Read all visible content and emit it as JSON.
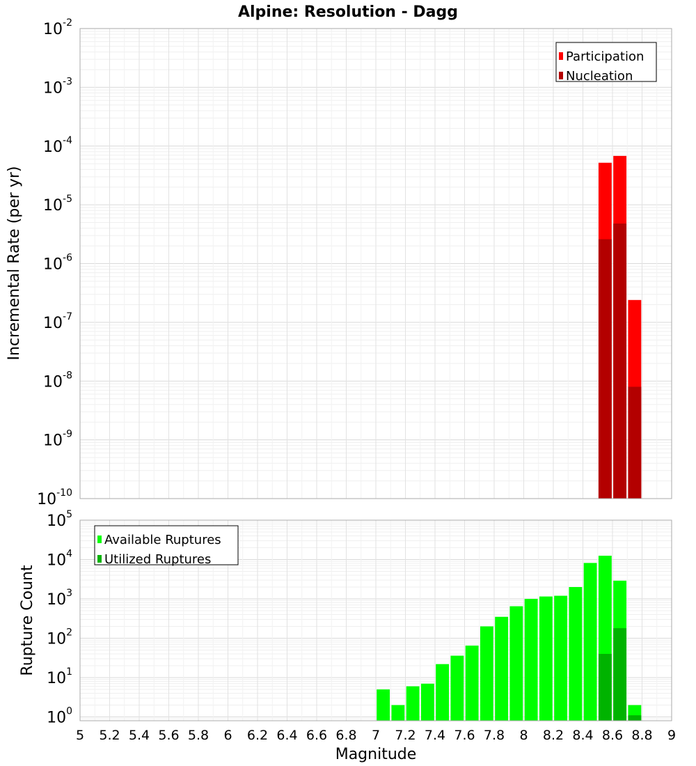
{
  "chart_data": [
    {
      "type": "bar",
      "title": "Alpine: Resolution - Dagg",
      "ylabel": "Incremental Rate (per yr)",
      "xlabel": "",
      "yscale": "log",
      "ylim": [
        1e-10,
        0.01
      ],
      "xlim": [
        5,
        9
      ],
      "y_ticks": [
        {
          "base": "10",
          "exp": "-10"
        },
        {
          "base": "10",
          "exp": "-9"
        },
        {
          "base": "10",
          "exp": "-8"
        },
        {
          "base": "10",
          "exp": "-7"
        },
        {
          "base": "10",
          "exp": "-6"
        },
        {
          "base": "10",
          "exp": "-5"
        },
        {
          "base": "10",
          "exp": "-4"
        },
        {
          "base": "10",
          "exp": "-3"
        },
        {
          "base": "10",
          "exp": "-2"
        }
      ],
      "grid": true,
      "legend_position": "top-right",
      "bar_width": 0.1,
      "series": [
        {
          "name": "Participation",
          "color": "#ff0000",
          "x": [
            8.55,
            8.65,
            8.75
          ],
          "values": [
            5.2e-05,
            6.8e-05,
            2.4e-07
          ]
        },
        {
          "name": "Nucleation",
          "color": "#b30000",
          "x": [
            8.55,
            8.65,
            8.75
          ],
          "values": [
            2.6e-06,
            4.8e-06,
            8e-09
          ]
        }
      ]
    },
    {
      "type": "bar",
      "title": "",
      "ylabel": "Rupture Count",
      "xlabel": "Magnitude",
      "yscale": "log",
      "ylim": [
        0.8,
        100000
      ],
      "xlim": [
        5,
        9
      ],
      "y_ticks": [
        {
          "value": 1,
          "base": "10",
          "exp": "0"
        },
        {
          "value": 10,
          "base": "10",
          "exp": "1"
        },
        {
          "value": 100,
          "base": "10",
          "exp": "2"
        },
        {
          "value": 1000,
          "base": "10",
          "exp": "3"
        },
        {
          "value": 10000,
          "base": "10",
          "exp": "4"
        },
        {
          "value": 100000,
          "base": "10",
          "exp": "5"
        }
      ],
      "x_ticks": [
        "5",
        "5.2",
        "5.4",
        "5.6",
        "5.8",
        "6",
        "6.2",
        "6.4",
        "6.6",
        "6.8",
        "7",
        "7.2",
        "7.4",
        "7.6",
        "7.8",
        "8",
        "8.2",
        "8.4",
        "8.6",
        "8.8",
        "9"
      ],
      "grid": true,
      "legend_position": "top-left",
      "bar_width": 0.1,
      "series": [
        {
          "name": "Available Ruptures",
          "color": "#00ff00",
          "x": [
            7.05,
            7.15,
            7.25,
            7.35,
            7.45,
            7.55,
            7.65,
            7.75,
            7.85,
            7.95,
            8.05,
            8.15,
            8.25,
            8.35,
            8.45,
            8.55,
            8.65,
            8.75
          ],
          "values": [
            5,
            2,
            6,
            7,
            22,
            36,
            65,
            200,
            350,
            650,
            1000,
            1150,
            1200,
            2000,
            8200,
            12500,
            2900,
            2
          ]
        },
        {
          "name": "Utilized Ruptures",
          "color": "#00b300",
          "x": [
            8.55,
            8.65,
            8.75
          ],
          "values": [
            40,
            180,
            1.1
          ]
        }
      ]
    }
  ]
}
